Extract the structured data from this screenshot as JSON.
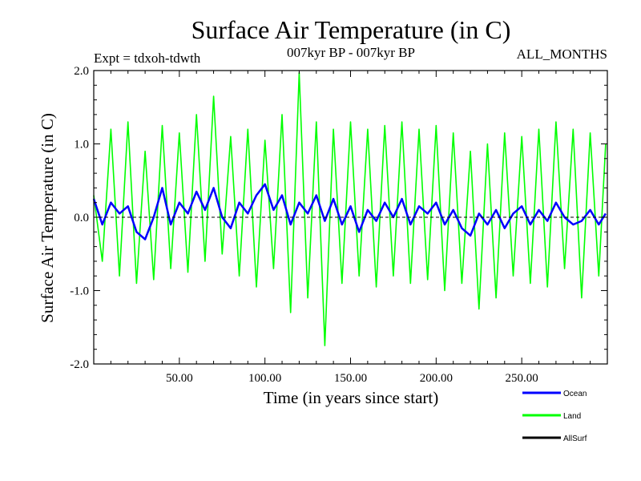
{
  "chart_data": {
    "type": "line",
    "title": "Surface Air Temperature (in C)",
    "subtitle": "007kyr BP - 007kyr BP",
    "expt_label": "Expt = tdxoh-tdwth",
    "months_label": "ALL_MONTHS",
    "xlabel": "Time (in years since start)",
    "ylabel": "Surface Air Temperature (in C)",
    "xlim": [
      0,
      300
    ],
    "ylim": [
      -2.0,
      2.0
    ],
    "x_ticks": [
      50,
      100,
      150,
      200,
      250
    ],
    "x_tick_labels": [
      "50.00",
      "100.00",
      "150.00",
      "200.00",
      "250.00"
    ],
    "y_ticks": [
      -2.0,
      -1.0,
      0.0,
      1.0,
      2.0
    ],
    "y_tick_labels": [
      "-2.0",
      "-1.0",
      "0.0",
      "1.0",
      "2.0"
    ],
    "zero_line": "dashed",
    "legend_position": "bottom-right",
    "series": [
      {
        "name": "Land",
        "color": "#00ff00",
        "x": [
          0,
          5,
          10,
          15,
          20,
          25,
          30,
          35,
          40,
          45,
          50,
          55,
          60,
          65,
          70,
          75,
          80,
          85,
          90,
          95,
          100,
          105,
          110,
          115,
          120,
          125,
          130,
          135,
          140,
          145,
          150,
          155,
          160,
          165,
          170,
          175,
          180,
          185,
          190,
          195,
          200,
          205,
          210,
          215,
          220,
          225,
          230,
          235,
          240,
          245,
          250,
          255,
          260,
          265,
          270,
          275,
          280,
          285,
          290,
          295,
          299
        ],
        "values": [
          0.3,
          -0.6,
          1.2,
          -0.8,
          1.3,
          -0.9,
          0.9,
          -0.85,
          1.25,
          -0.7,
          1.15,
          -0.75,
          1.4,
          -0.6,
          1.65,
          -0.5,
          1.1,
          -0.8,
          1.2,
          -0.95,
          1.05,
          -0.7,
          1.4,
          -1.3,
          1.97,
          -1.1,
          1.3,
          -1.75,
          1.2,
          -0.9,
          1.3,
          -0.8,
          1.2,
          -0.95,
          1.25,
          -0.8,
          1.3,
          -0.9,
          1.2,
          -0.85,
          1.25,
          -1.0,
          1.15,
          -0.9,
          0.9,
          -1.25,
          1.0,
          -1.1,
          1.15,
          -0.8,
          1.1,
          -0.9,
          1.2,
          -0.95,
          1.3,
          -0.7,
          1.2,
          -1.1,
          1.15,
          -0.8,
          1.0
        ]
      },
      {
        "name": "Ocean",
        "color": "#0000ff",
        "x": [
          0,
          5,
          10,
          15,
          20,
          25,
          30,
          35,
          40,
          45,
          50,
          55,
          60,
          65,
          70,
          75,
          80,
          85,
          90,
          95,
          100,
          105,
          110,
          115,
          120,
          125,
          130,
          135,
          140,
          145,
          150,
          155,
          160,
          165,
          170,
          175,
          180,
          185,
          190,
          195,
          200,
          205,
          210,
          215,
          220,
          225,
          230,
          235,
          240,
          245,
          250,
          255,
          260,
          265,
          270,
          275,
          280,
          285,
          290,
          295,
          299
        ],
        "values": [
          0.25,
          -0.1,
          0.2,
          0.05,
          0.15,
          -0.2,
          -0.3,
          0.0,
          0.4,
          -0.1,
          0.2,
          0.05,
          0.35,
          0.1,
          0.4,
          0.0,
          -0.15,
          0.2,
          0.05,
          0.3,
          0.45,
          0.1,
          0.3,
          -0.1,
          0.2,
          0.05,
          0.3,
          -0.05,
          0.25,
          -0.1,
          0.15,
          -0.2,
          0.1,
          -0.05,
          0.2,
          0.0,
          0.25,
          -0.1,
          0.15,
          0.05,
          0.2,
          -0.1,
          0.1,
          -0.15,
          -0.25,
          0.05,
          -0.1,
          0.1,
          -0.15,
          0.05,
          0.15,
          -0.1,
          0.1,
          -0.05,
          0.2,
          0.0,
          -0.1,
          -0.05,
          0.1,
          -0.1,
          0.05
        ]
      },
      {
        "name": "AllSurf",
        "color": "#000000",
        "x": [],
        "values": []
      }
    ]
  }
}
